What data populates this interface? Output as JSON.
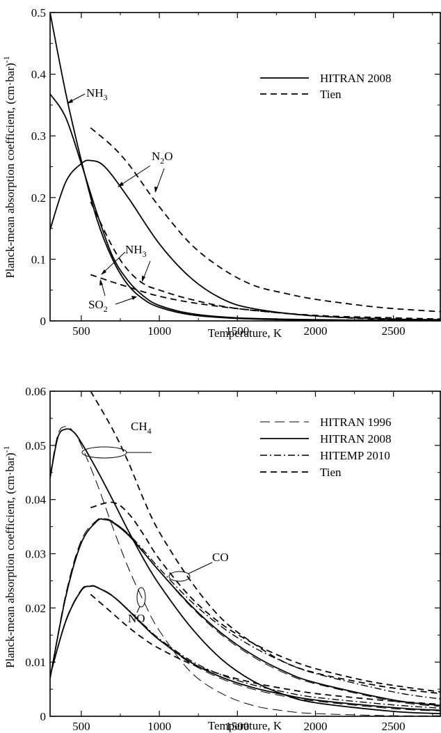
{
  "chart_data": [
    {
      "type": "line",
      "xlabel": "Temperature, K",
      "ylabel": "Planck-mean absorption coefficient, (cm·bar)",
      "ylabel_sup": "-1",
      "xlim": [
        300,
        2800
      ],
      "ylim": [
        0,
        0.5
      ],
      "xticks": [
        500,
        1000,
        1500,
        2000,
        2500
      ],
      "xtick_labels": [
        "500",
        "1000",
        "1500",
        "2000",
        "2500"
      ],
      "yticks": [
        0,
        0.1,
        0.2,
        0.3,
        0.4,
        0.5
      ],
      "ytick_labels": [
        "0",
        "0.1",
        "0.2",
        "0.3",
        "0.4",
        "0.5"
      ],
      "grid": false,
      "legend_position": "top-right",
      "legend": [
        {
          "label": "HITRAN 2008",
          "style": "solid"
        },
        {
          "label": "Tien",
          "style": "dashed"
        }
      ],
      "annotations": [
        {
          "text": "NH",
          "sub": "3"
        },
        {
          "text": "N",
          "sub": "2",
          "suffix": "O"
        },
        {
          "text": "NH",
          "sub": "3"
        },
        {
          "text": "SO",
          "sub": "2"
        }
      ],
      "series": [
        {
          "gas": "NH3",
          "dataset": "HITRAN 2008",
          "style": "solid",
          "x": [
            300,
            400,
            500,
            600,
            700,
            800,
            900,
            1000,
            1200,
            1500,
            2000,
            2500,
            2800
          ],
          "y": [
            0.368,
            0.33,
            0.255,
            0.175,
            0.105,
            0.065,
            0.04,
            0.025,
            0.012,
            0.005,
            0.002,
            0.001,
            0.001
          ]
        },
        {
          "gas": "SO2",
          "dataset": "HITRAN 2008",
          "style": "solid",
          "x": [
            300,
            400,
            500,
            600,
            700,
            800,
            900,
            1000,
            1200,
            1500,
            2000,
            2500,
            2800
          ],
          "y": [
            0.5,
            0.37,
            0.26,
            0.165,
            0.1,
            0.058,
            0.035,
            0.022,
            0.01,
            0.004,
            0.001,
            0.0005,
            0.0003
          ]
        },
        {
          "gas": "N2O",
          "dataset": "HITRAN 2008",
          "style": "solid",
          "x": [
            300,
            400,
            500,
            560,
            650,
            800,
            1000,
            1200,
            1400,
            1600,
            2000,
            2500,
            2800
          ],
          "y": [
            0.148,
            0.225,
            0.255,
            0.26,
            0.25,
            0.2,
            0.125,
            0.07,
            0.036,
            0.02,
            0.008,
            0.003,
            0.002
          ]
        },
        {
          "gas": "N2O",
          "dataset": "Tien",
          "style": "dashed",
          "x": [
            560,
            700,
            800,
            900,
            1000,
            1200,
            1400,
            1600,
            1800,
            2000,
            2300,
            2500,
            2800
          ],
          "y": [
            0.313,
            0.283,
            0.255,
            0.22,
            0.185,
            0.125,
            0.085,
            0.058,
            0.045,
            0.035,
            0.025,
            0.02,
            0.015
          ]
        },
        {
          "gas": "NH3",
          "dataset": "Tien",
          "style": "dashed",
          "x": [
            560,
            700,
            800,
            900,
            1000,
            1200,
            1500,
            2000,
            2500,
            2800
          ],
          "y": [
            0.193,
            0.12,
            0.082,
            0.06,
            0.05,
            0.035,
            0.02,
            0.009,
            0.005,
            0.003
          ]
        },
        {
          "gas": "SO2",
          "dataset": "Tien",
          "style": "dashed",
          "x": [
            560,
            700,
            800,
            900,
            1000,
            1200,
            1500,
            2000,
            2500,
            2800
          ],
          "y": [
            0.075,
            0.063,
            0.055,
            0.047,
            0.04,
            0.03,
            0.02,
            0.008,
            0.002,
            0.001
          ]
        }
      ]
    },
    {
      "type": "line",
      "xlabel": "Temperature, K",
      "ylabel": "Planck-mean absorption coefficient, (cm·bar)",
      "ylabel_sup": "-1",
      "xlim": [
        300,
        2800
      ],
      "ylim": [
        0,
        0.06
      ],
      "xticks": [
        500,
        1000,
        1500,
        2000,
        2500
      ],
      "xtick_labels": [
        "500",
        "1000",
        "1500",
        "2000",
        "2500"
      ],
      "yticks": [
        0,
        0.01,
        0.02,
        0.03,
        0.04,
        0.05,
        0.06
      ],
      "ytick_labels": [
        "0",
        "0.01",
        "0.02",
        "0.03",
        "0.04",
        "0.05",
        "0.06"
      ],
      "grid": false,
      "legend_position": "top-right",
      "legend": [
        {
          "label": "HITRAN 1996",
          "style": "longdash"
        },
        {
          "label": "HITRAN 2008",
          "style": "solid"
        },
        {
          "label": "HITEMP 2010",
          "style": "dashdot"
        },
        {
          "label": "Tien",
          "style": "dashed"
        }
      ],
      "annotations": [
        {
          "text": "CH",
          "sub": "4"
        },
        {
          "text": "CO"
        },
        {
          "text": "NO"
        }
      ],
      "series": [
        {
          "gas": "CH4",
          "dataset": "HITRAN 2008",
          "style": "solid",
          "x": [
            300,
            350,
            400,
            450,
            500,
            600,
            700,
            800,
            900,
            1000,
            1200,
            1400,
            1600,
            1800,
            2000,
            2500,
            2800
          ],
          "y": [
            0.044,
            0.0515,
            0.053,
            0.0525,
            0.0505,
            0.0455,
            0.04,
            0.0343,
            0.029,
            0.0243,
            0.0165,
            0.0105,
            0.0065,
            0.004,
            0.0025,
            0.0009,
            0.0005
          ]
        },
        {
          "gas": "CH4",
          "dataset": "HITRAN 1996",
          "style": "longdash",
          "x": [
            300,
            350,
            400,
            450,
            500,
            600,
            700,
            800,
            900,
            1000,
            1200,
            1400,
            1600,
            1800,
            2000,
            2500,
            2800
          ],
          "y": [
            0.0445,
            0.052,
            0.0535,
            0.0525,
            0.05,
            0.043,
            0.035,
            0.0275,
            0.0212,
            0.0158,
            0.0082,
            0.0042,
            0.002,
            0.001,
            0.0005,
            0.0001,
            0.0001
          ]
        },
        {
          "gas": "CH4",
          "dataset": "Tien",
          "style": "dashed",
          "x": [
            560,
            700,
            800,
            900,
            1000,
            1200,
            1400,
            1600,
            1800,
            2000,
            2300,
            2500,
            2800
          ],
          "y": [
            0.06,
            0.053,
            0.047,
            0.04,
            0.034,
            0.025,
            0.018,
            0.0135,
            0.01,
            0.008,
            0.0062,
            0.0052,
            0.0042
          ]
        },
        {
          "gas": "CO",
          "dataset": "HITRAN 2008",
          "style": "solid",
          "x": [
            300,
            400,
            500,
            600,
            650,
            700,
            800,
            900,
            1000,
            1200,
            1400,
            1600,
            1800,
            2000,
            2500,
            2800
          ],
          "y": [
            0.007,
            0.022,
            0.032,
            0.036,
            0.0363,
            0.0358,
            0.0335,
            0.0302,
            0.0268,
            0.0205,
            0.0153,
            0.0113,
            0.0083,
            0.0062,
            0.003,
            0.002
          ]
        },
        {
          "gas": "CO",
          "dataset": "HITRAN 1996",
          "style": "longdash",
          "x": [
            300,
            400,
            500,
            600,
            650,
            700,
            800,
            900,
            1000,
            1200,
            1400,
            1600,
            1800,
            2000,
            2500,
            2800
          ],
          "y": [
            0.007,
            0.0225,
            0.0325,
            0.0362,
            0.0365,
            0.036,
            0.0337,
            0.0303,
            0.0268,
            0.0203,
            0.015,
            0.011,
            0.008,
            0.006,
            0.0028,
            0.0018
          ]
        },
        {
          "gas": "CO",
          "dataset": "HITEMP 2010",
          "style": "dashdot",
          "x": [
            300,
            400,
            500,
            600,
            650,
            700,
            800,
            900,
            1000,
            1200,
            1400,
            1600,
            1800,
            2000,
            2500,
            2800
          ],
          "y": [
            0.007,
            0.022,
            0.032,
            0.036,
            0.0363,
            0.0359,
            0.0337,
            0.0306,
            0.0273,
            0.0213,
            0.0165,
            0.0128,
            0.01,
            0.0079,
            0.0045,
            0.0032
          ]
        },
        {
          "gas": "CO",
          "dataset": "Tien",
          "style": "dashed",
          "x": [
            560,
            700,
            800,
            900,
            1000,
            1200,
            1400,
            1600,
            1800,
            2000,
            2300,
            2500,
            2800
          ],
          "y": [
            0.0385,
            0.0395,
            0.0375,
            0.0335,
            0.029,
            0.022,
            0.017,
            0.0135,
            0.0108,
            0.0088,
            0.0067,
            0.0057,
            0.0045
          ]
        },
        {
          "gas": "NO",
          "dataset": "HITRAN 2008",
          "style": "solid",
          "x": [
            300,
            400,
            500,
            560,
            600,
            700,
            800,
            900,
            1000,
            1200,
            1400,
            1600,
            1800,
            2000,
            2500,
            2800
          ],
          "y": [
            0.0075,
            0.0175,
            0.0232,
            0.024,
            0.0238,
            0.0222,
            0.0196,
            0.0167,
            0.0141,
            0.01,
            0.0072,
            0.0053,
            0.004,
            0.003,
            0.0016,
            0.0011
          ]
        },
        {
          "gas": "NO",
          "dataset": "HITRAN 1996",
          "style": "longdash",
          "x": [
            300,
            400,
            500,
            560,
            600,
            700,
            800,
            900,
            1000,
            1200,
            1400,
            1600,
            1800,
            2000,
            2500,
            2800
          ],
          "y": [
            0.0075,
            0.0177,
            0.0234,
            0.0241,
            0.0239,
            0.0223,
            0.0197,
            0.0168,
            0.0141,
            0.0098,
            0.0069,
            0.005,
            0.0037,
            0.0028,
            0.0014,
            0.001
          ]
        },
        {
          "gas": "NO",
          "dataset": "HITEMP 2010",
          "style": "dashdot",
          "x": [
            300,
            400,
            500,
            560,
            600,
            700,
            800,
            900,
            1000,
            1200,
            1400,
            1600,
            1800,
            2000,
            2500,
            2800
          ],
          "y": [
            0.0075,
            0.0175,
            0.0232,
            0.024,
            0.0238,
            0.0222,
            0.0197,
            0.0169,
            0.0143,
            0.0103,
            0.0076,
            0.0058,
            0.0045,
            0.0035,
            0.0021,
            0.0015
          ]
        },
        {
          "gas": "NO",
          "dataset": "Tien",
          "style": "dashed",
          "x": [
            560,
            700,
            800,
            900,
            1000,
            1200,
            1400,
            1600,
            1800,
            2000,
            2300,
            2500,
            2800
          ],
          "y": [
            0.0225,
            0.019,
            0.0165,
            0.0143,
            0.0125,
            0.0097,
            0.0077,
            0.0062,
            0.0051,
            0.0042,
            0.0033,
            0.0028,
            0.0022
          ]
        }
      ]
    }
  ]
}
